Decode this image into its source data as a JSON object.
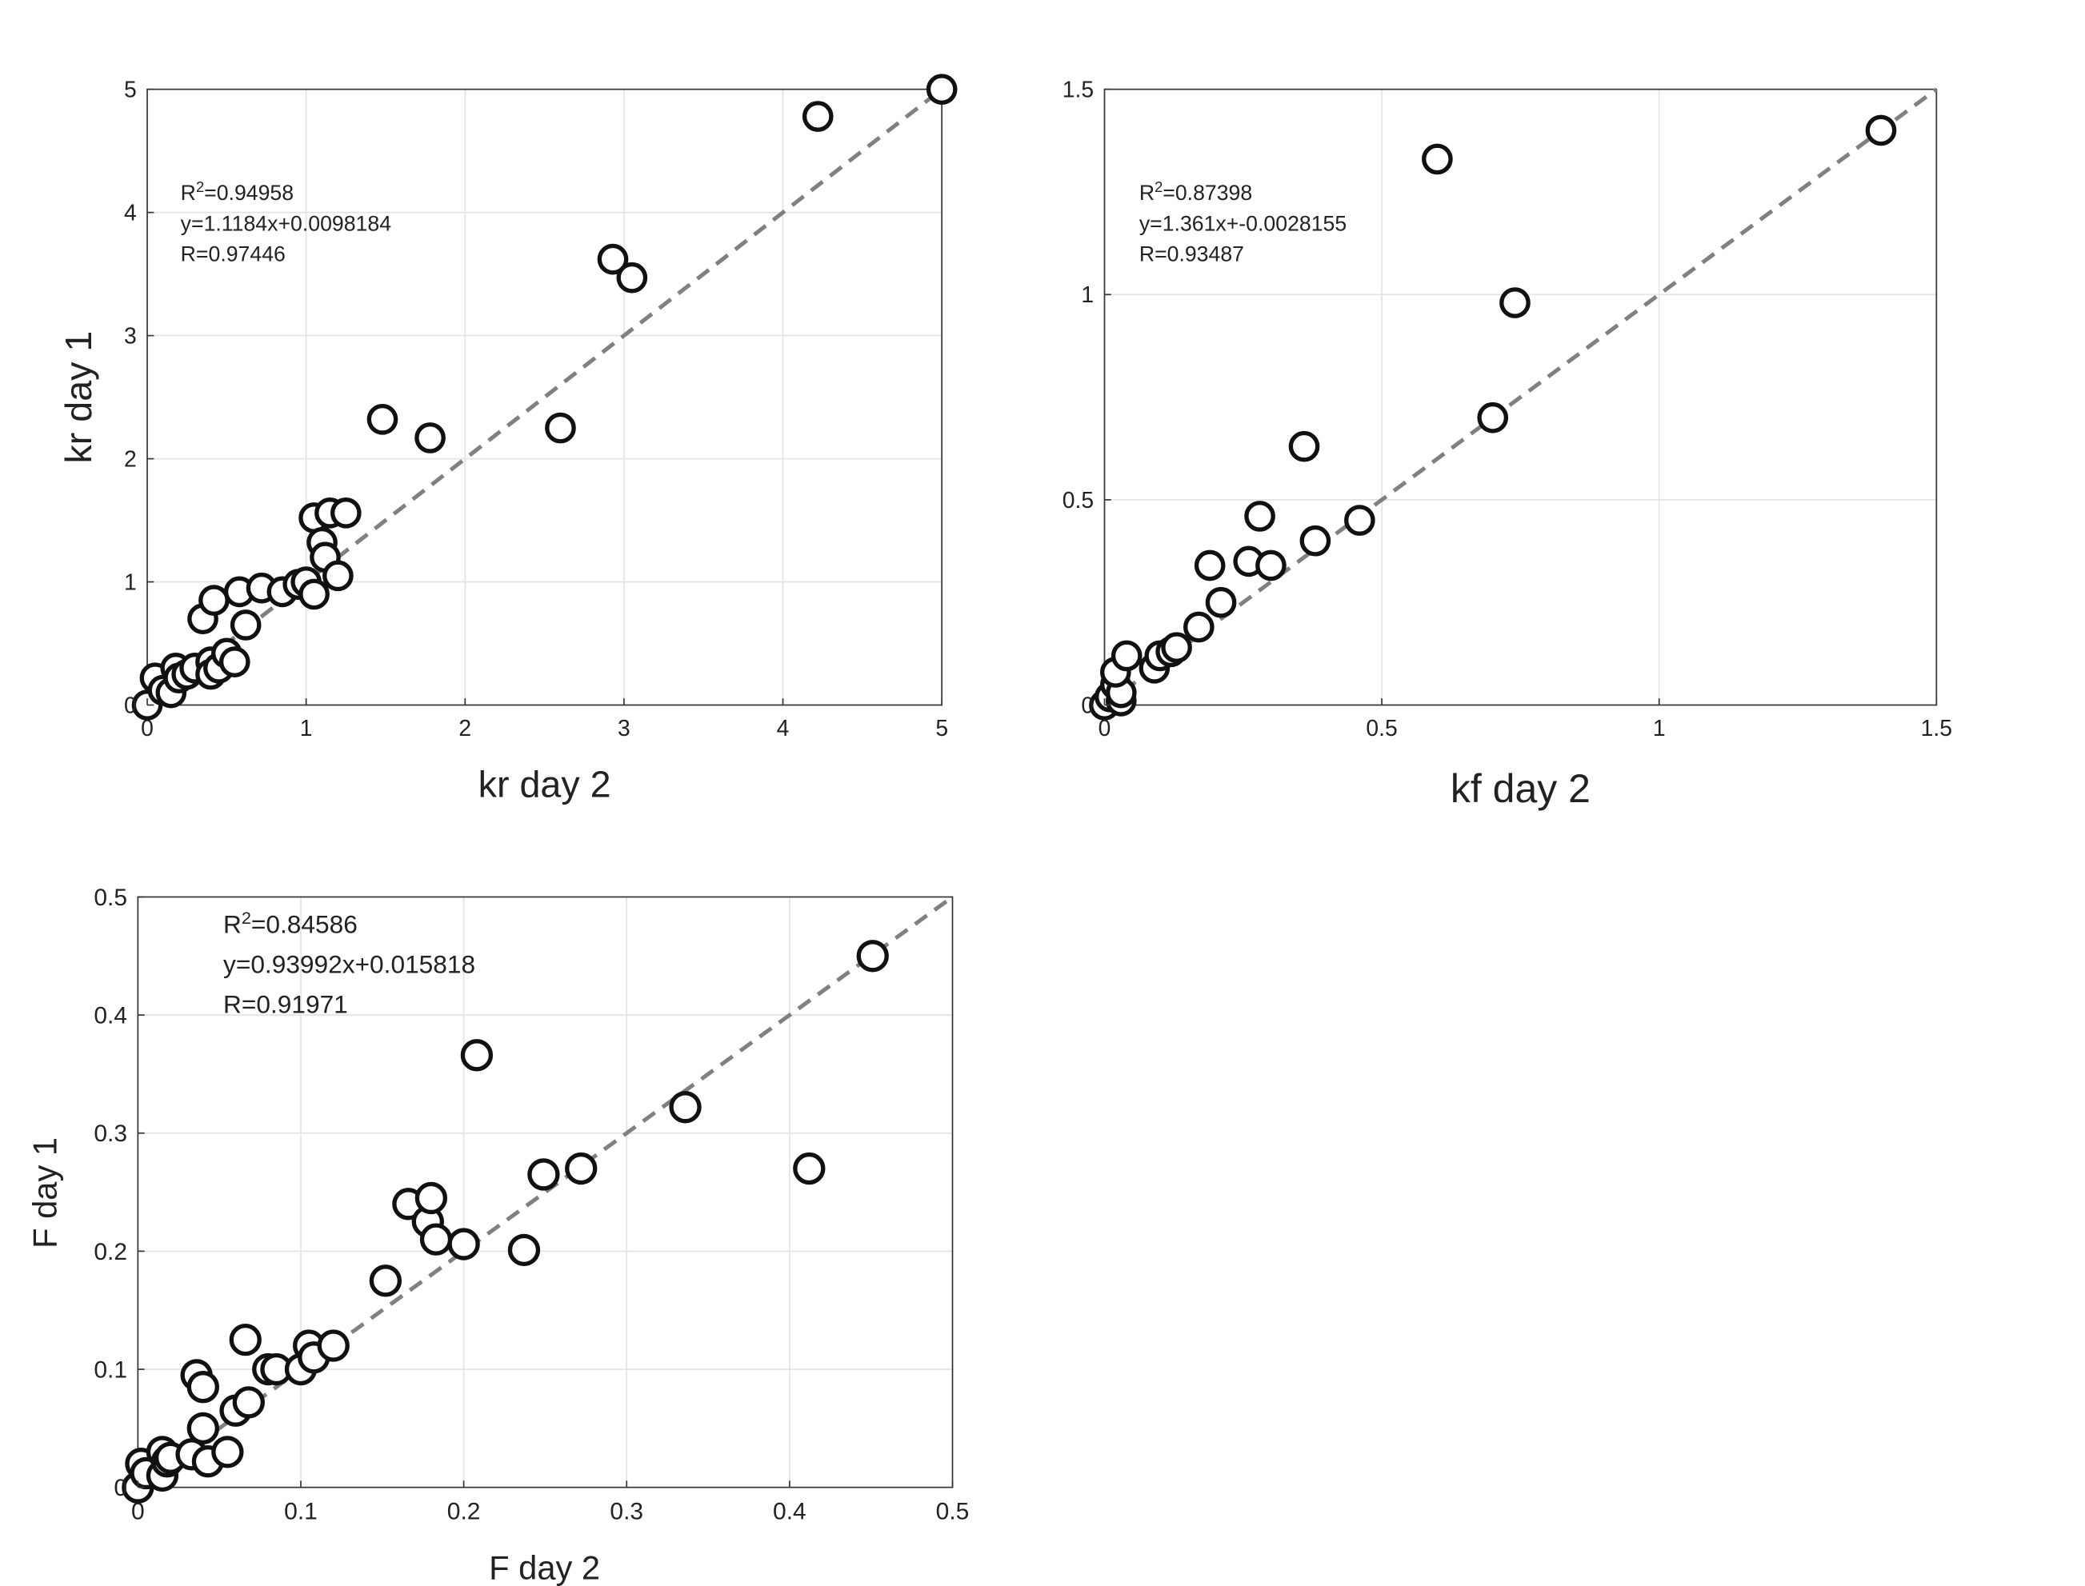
{
  "chart_data": [
    {
      "type": "scatter",
      "title": "",
      "xlabel": "kr day 2",
      "ylabel": "kr day 1",
      "xlim": [
        0,
        5
      ],
      "ylim": [
        0,
        5
      ],
      "xticks": [
        0,
        1,
        2,
        3,
        4,
        5
      ],
      "yticks": [
        0,
        1,
        2,
        3,
        4,
        5
      ],
      "xtick_labels": [
        "0",
        "1",
        "2",
        "3",
        "4",
        "5"
      ],
      "ytick_labels": [
        "0",
        "1",
        "2",
        "3",
        "4",
        "5"
      ],
      "grid": true,
      "annotation": {
        "r2_prefix": "R",
        "r2_sup": "2",
        "r2_value": "=0.94958",
        "fit": "y=1.1184x+0.0098184",
        "r": "R=0.97446"
      },
      "reference_line": [
        [
          0,
          0
        ],
        [
          5,
          5
        ]
      ],
      "points": [
        [
          0.0,
          0.0
        ],
        [
          0.05,
          0.22
        ],
        [
          0.1,
          0.12
        ],
        [
          0.15,
          0.1
        ],
        [
          0.18,
          0.3
        ],
        [
          0.2,
          0.22
        ],
        [
          0.25,
          0.25
        ],
        [
          0.3,
          0.3
        ],
        [
          0.35,
          0.7
        ],
        [
          0.4,
          0.35
        ],
        [
          0.4,
          0.25
        ],
        [
          0.42,
          0.85
        ],
        [
          0.45,
          0.3
        ],
        [
          0.5,
          0.42
        ],
        [
          0.55,
          0.35
        ],
        [
          0.58,
          0.92
        ],
        [
          0.62,
          0.65
        ],
        [
          0.72,
          0.95
        ],
        [
          0.85,
          0.92
        ],
        [
          0.95,
          0.98
        ],
        [
          1.0,
          1.0
        ],
        [
          1.05,
          0.9
        ],
        [
          1.05,
          1.52
        ],
        [
          1.1,
          1.32
        ],
        [
          1.12,
          1.2
        ],
        [
          1.15,
          1.56
        ],
        [
          1.2,
          1.05
        ],
        [
          1.25,
          1.56
        ],
        [
          1.48,
          2.32
        ],
        [
          1.78,
          2.17
        ],
        [
          2.6,
          2.25
        ],
        [
          2.93,
          3.62
        ],
        [
          3.05,
          3.47
        ],
        [
          4.22,
          4.78
        ],
        [
          5.0,
          5.0
        ]
      ]
    },
    {
      "type": "scatter",
      "title": "",
      "xlabel": "kf day 2",
      "ylabel": "",
      "xlim": [
        0,
        1.5
      ],
      "ylim": [
        0,
        1.5
      ],
      "xticks": [
        0,
        0.5,
        1,
        1.5
      ],
      "yticks": [
        0,
        0.5,
        1,
        1.5
      ],
      "xtick_labels": [
        "0",
        "0.5",
        "1",
        "1.5"
      ],
      "ytick_labels": [
        "0",
        "0.5",
        "1",
        "1.5"
      ],
      "grid": true,
      "annotation": {
        "r2_prefix": "R",
        "r2_sup": "2",
        "r2_value": "=0.87398",
        "fit": "y=1.361x+-0.0028155",
        "r": "R=0.93487"
      },
      "reference_line": [
        [
          0,
          0
        ],
        [
          1.5,
          1.5
        ]
      ],
      "points": [
        [
          0.0,
          0.0
        ],
        [
          0.01,
          0.02
        ],
        [
          0.02,
          0.05
        ],
        [
          0.03,
          0.01
        ],
        [
          0.03,
          0.03
        ],
        [
          0.02,
          0.08
        ],
        [
          0.04,
          0.12
        ],
        [
          0.09,
          0.09
        ],
        [
          0.1,
          0.12
        ],
        [
          0.12,
          0.13
        ],
        [
          0.13,
          0.14
        ],
        [
          0.17,
          0.19
        ],
        [
          0.19,
          0.34
        ],
        [
          0.21,
          0.25
        ],
        [
          0.26,
          0.35
        ],
        [
          0.28,
          0.46
        ],
        [
          0.3,
          0.34
        ],
        [
          0.36,
          0.63
        ],
        [
          0.38,
          0.4
        ],
        [
          0.46,
          0.45
        ],
        [
          0.6,
          1.33
        ],
        [
          0.7,
          0.7
        ],
        [
          0.74,
          0.98
        ],
        [
          1.4,
          1.4
        ]
      ]
    },
    {
      "type": "scatter",
      "title": "",
      "xlabel": "F day 2",
      "ylabel": "F day 1",
      "xlim": [
        0,
        0.5
      ],
      "ylim": [
        0,
        0.5
      ],
      "xticks": [
        0,
        0.1,
        0.2,
        0.3,
        0.4,
        0.5
      ],
      "yticks": [
        0,
        0.1,
        0.2,
        0.3,
        0.4,
        0.5
      ],
      "xtick_labels": [
        "0",
        "0.1",
        "0.2",
        "0.3",
        "0.4",
        "0.5"
      ],
      "ytick_labels": [
        "0",
        "0.1",
        "0.2",
        "0.3",
        "0.4",
        "0.5"
      ],
      "grid": true,
      "annotation": {
        "r2_prefix": "R",
        "r2_sup": "2",
        "r2_value": "=0.84586",
        "fit": "y=0.93992x+0.015818",
        "r": "R=0.91971"
      },
      "reference_line": [
        [
          0,
          0
        ],
        [
          0.5,
          0.5
        ]
      ],
      "points": [
        [
          0.0,
          0.0
        ],
        [
          0.002,
          0.02
        ],
        [
          0.005,
          0.012
        ],
        [
          0.015,
          0.03
        ],
        [
          0.015,
          0.01
        ],
        [
          0.018,
          0.022
        ],
        [
          0.02,
          0.025
        ],
        [
          0.033,
          0.028
        ],
        [
          0.036,
          0.095
        ],
        [
          0.04,
          0.085
        ],
        [
          0.04,
          0.05
        ],
        [
          0.043,
          0.022
        ],
        [
          0.055,
          0.03
        ],
        [
          0.06,
          0.065
        ],
        [
          0.066,
          0.125
        ],
        [
          0.068,
          0.072
        ],
        [
          0.08,
          0.1
        ],
        [
          0.085,
          0.1
        ],
        [
          0.1,
          0.1
        ],
        [
          0.105,
          0.12
        ],
        [
          0.108,
          0.11
        ],
        [
          0.12,
          0.12
        ],
        [
          0.152,
          0.175
        ],
        [
          0.166,
          0.24
        ],
        [
          0.178,
          0.225
        ],
        [
          0.18,
          0.245
        ],
        [
          0.183,
          0.21
        ],
        [
          0.2,
          0.206
        ],
        [
          0.208,
          0.366
        ],
        [
          0.237,
          0.201
        ],
        [
          0.249,
          0.265
        ],
        [
          0.272,
          0.27
        ],
        [
          0.336,
          0.322
        ],
        [
          0.412,
          0.27
        ],
        [
          0.451,
          0.45
        ]
      ]
    }
  ]
}
